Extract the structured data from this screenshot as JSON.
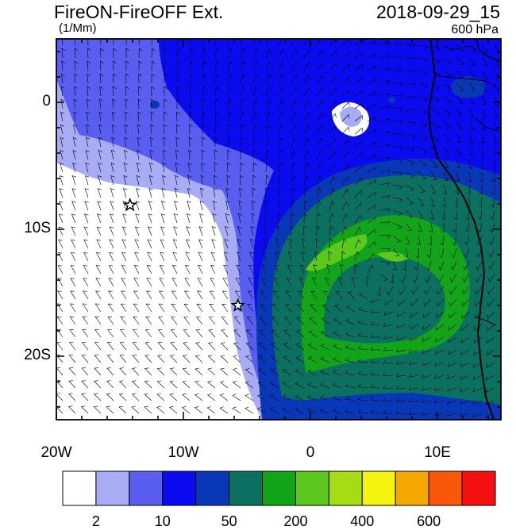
{
  "header": {
    "title": "FireON-FireOFF Ext.",
    "units": "(1/Mm)",
    "datetime": "2018-09-29_15",
    "level": "600 hPa"
  },
  "axes": {
    "lon_labels": [
      "20W",
      "10W",
      "0",
      "10E"
    ],
    "lat_labels": [
      "0",
      "10S",
      "20S"
    ]
  },
  "colorbar": {
    "colors": [
      "#ffffff",
      "#a8acf4",
      "#5a5ef0",
      "#0a0cef",
      "#0838b8",
      "#0b7060",
      "#12a51a",
      "#5cc71c",
      "#a6dc12",
      "#f4f410",
      "#f4a800",
      "#f85808",
      "#f41010"
    ],
    "tick_labels": [
      "2",
      "10",
      "50",
      "200",
      "400",
      "600"
    ]
  },
  "markers": [
    {
      "name": "star-marker",
      "lon": -14.2,
      "lat": -8.1
    },
    {
      "name": "star-marker",
      "lon": -5.7,
      "lat": -16.0
    }
  ]
}
